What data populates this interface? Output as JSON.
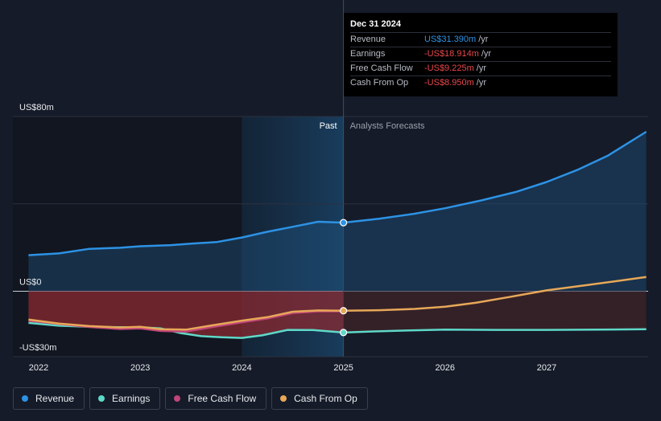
{
  "tooltip": {
    "date": "Dec 31 2024",
    "rows": [
      {
        "label": "Revenue",
        "value": "US$31.390m",
        "unit": "/yr",
        "color": "#2d92e4"
      },
      {
        "label": "Earnings",
        "value": "-US$18.914m",
        "unit": "/yr",
        "color": "#e8474a"
      },
      {
        "label": "Free Cash Flow",
        "value": "-US$9.225m",
        "unit": "/yr",
        "color": "#e8474a"
      },
      {
        "label": "Cash From Op",
        "value": "-US$8.950m",
        "unit": "/yr",
        "color": "#e8474a"
      }
    ]
  },
  "legend": [
    {
      "label": "Revenue",
      "color": "#2d92e4"
    },
    {
      "label": "Earnings",
      "color": "#5fd8c8"
    },
    {
      "label": "Free Cash Flow",
      "color": "#c0457a"
    },
    {
      "label": "Cash From Op",
      "color": "#e7a858"
    }
  ],
  "chart_data": {
    "type": "line",
    "title": "",
    "xlabel": "",
    "ylabel": "",
    "ylim": [
      -30,
      80
    ],
    "xlim": [
      2021.9,
      2027.98
    ],
    "grid": true,
    "y_tick_labels": [
      {
        "value": 80,
        "label": "US$80m"
      },
      {
        "value": 0,
        "label": "US$0"
      },
      {
        "value": -30,
        "label": "-US$30m"
      }
    ],
    "x_ticks": [
      2022,
      2023,
      2024,
      2025,
      2026,
      2027
    ],
    "x_tick_labels": [
      "2022",
      "2023",
      "2024",
      "2025",
      "2026",
      "2027"
    ],
    "past_label": "Past",
    "forecast_label": "Analysts Forecasts",
    "divider_x": 2025,
    "highlight_start_x": 2024,
    "series": [
      {
        "name": "Revenue",
        "color": "#2d92e4",
        "points": [
          [
            2021.9,
            16.5
          ],
          [
            2022.2,
            17.3
          ],
          [
            2022.5,
            19.4
          ],
          [
            2022.8,
            19.9
          ],
          [
            2023.0,
            20.6
          ],
          [
            2023.3,
            21.1
          ],
          [
            2023.5,
            21.8
          ],
          [
            2023.75,
            22.5
          ],
          [
            2024.0,
            24.6
          ],
          [
            2024.25,
            27.2
          ],
          [
            2024.5,
            29.5
          ],
          [
            2024.75,
            31.8
          ],
          [
            2025.0,
            31.39
          ],
          [
            2025.35,
            33.2
          ],
          [
            2025.7,
            35.5
          ],
          [
            2026.0,
            38.0
          ],
          [
            2026.35,
            41.5
          ],
          [
            2026.7,
            45.5
          ],
          [
            2027.0,
            50.0
          ],
          [
            2027.3,
            55.5
          ],
          [
            2027.6,
            62.0
          ],
          [
            2027.98,
            73.0
          ]
        ]
      },
      {
        "name": "Earnings",
        "color": "#5fd8c8",
        "points": [
          [
            2021.9,
            -14.5
          ],
          [
            2022.2,
            -15.8
          ],
          [
            2022.5,
            -16.3
          ],
          [
            2022.8,
            -16.5
          ],
          [
            2023.0,
            -16.5
          ],
          [
            2023.2,
            -17.0
          ],
          [
            2023.4,
            -19.2
          ],
          [
            2023.6,
            -20.6
          ],
          [
            2023.8,
            -21.1
          ],
          [
            2024.0,
            -21.4
          ],
          [
            2024.2,
            -20.2
          ],
          [
            2024.45,
            -17.7
          ],
          [
            2024.7,
            -17.8
          ],
          [
            2025.0,
            -18.914
          ],
          [
            2025.3,
            -18.4
          ],
          [
            2025.7,
            -17.9
          ],
          [
            2026.0,
            -17.6
          ],
          [
            2026.5,
            -17.7
          ],
          [
            2027.0,
            -17.7
          ],
          [
            2027.5,
            -17.6
          ],
          [
            2027.98,
            -17.4
          ]
        ]
      },
      {
        "name": "Free Cash Flow",
        "color": "#c0457a",
        "points": [
          [
            2021.9,
            -13.5
          ],
          [
            2022.2,
            -15.0
          ],
          [
            2022.5,
            -16.4
          ],
          [
            2022.8,
            -17.3
          ],
          [
            2023.0,
            -17.0
          ],
          [
            2023.2,
            -18.2
          ],
          [
            2023.45,
            -18.5
          ],
          [
            2023.7,
            -16.5
          ],
          [
            2024.0,
            -14.2
          ],
          [
            2024.25,
            -12.5
          ],
          [
            2024.5,
            -10.0
          ],
          [
            2024.75,
            -9.2
          ],
          [
            2025.0,
            -9.225
          ]
        ]
      },
      {
        "name": "Cash From Op",
        "color": "#e7a858",
        "points": [
          [
            2021.9,
            -13.0
          ],
          [
            2022.2,
            -14.8
          ],
          [
            2022.5,
            -16.0
          ],
          [
            2022.8,
            -16.6
          ],
          [
            2023.0,
            -16.3
          ],
          [
            2023.2,
            -17.4
          ],
          [
            2023.45,
            -17.6
          ],
          [
            2023.7,
            -15.7
          ],
          [
            2024.0,
            -13.5
          ],
          [
            2024.25,
            -11.9
          ],
          [
            2024.5,
            -9.4
          ],
          [
            2024.75,
            -8.8
          ],
          [
            2025.0,
            -8.95
          ],
          [
            2025.35,
            -8.7
          ],
          [
            2025.7,
            -8.1
          ],
          [
            2026.0,
            -7.1
          ],
          [
            2026.3,
            -5.3
          ],
          [
            2026.65,
            -2.5
          ],
          [
            2027.0,
            0.4
          ],
          [
            2027.4,
            2.8
          ],
          [
            2027.98,
            6.5
          ]
        ]
      }
    ]
  }
}
